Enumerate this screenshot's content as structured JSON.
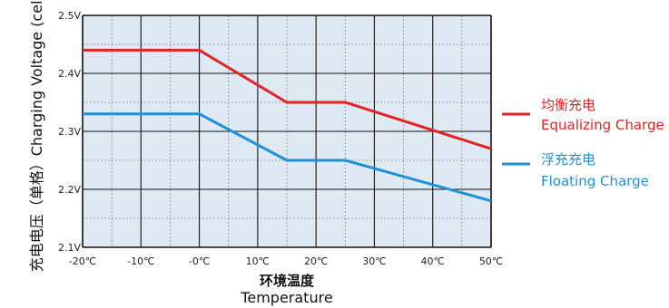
{
  "chart_data": {
    "type": "line",
    "title": "",
    "xlabel_cn": "环境温度",
    "xlabel_en": "Temperature",
    "ylabel": "充电电压（单格）Charging Voltage (cell)",
    "x_ticks": [
      "-20℃",
      "-10℃",
      "-0℃",
      "10℃",
      "20℃",
      "30℃",
      "40℃",
      "50℃"
    ],
    "y_ticks": [
      "2.5V",
      "2.4V",
      "2.3V",
      "2.2V",
      "2.1V"
    ],
    "xlim": [
      -20,
      50
    ],
    "ylim": [
      2.1,
      2.5
    ],
    "grid": true,
    "legend_position": "right",
    "series": [
      {
        "name_cn": "均衡充电",
        "name_en": "Equalizing Charge",
        "color": "#e02424",
        "x": [
          -20,
          0,
          15,
          25,
          50
        ],
        "y": [
          2.44,
          2.44,
          2.35,
          2.35,
          2.27
        ]
      },
      {
        "name_cn": "浮充充电",
        "name_en": "Floating Charge",
        "color": "#1e90d6",
        "x": [
          -20,
          0,
          15,
          25,
          50
        ],
        "y": [
          2.33,
          2.33,
          2.25,
          2.25,
          2.18
        ]
      }
    ],
    "colors": {
      "plot_background": "#dfe9f4",
      "grid_major": "#111111",
      "grid_minor": "#8a8a8a"
    }
  }
}
